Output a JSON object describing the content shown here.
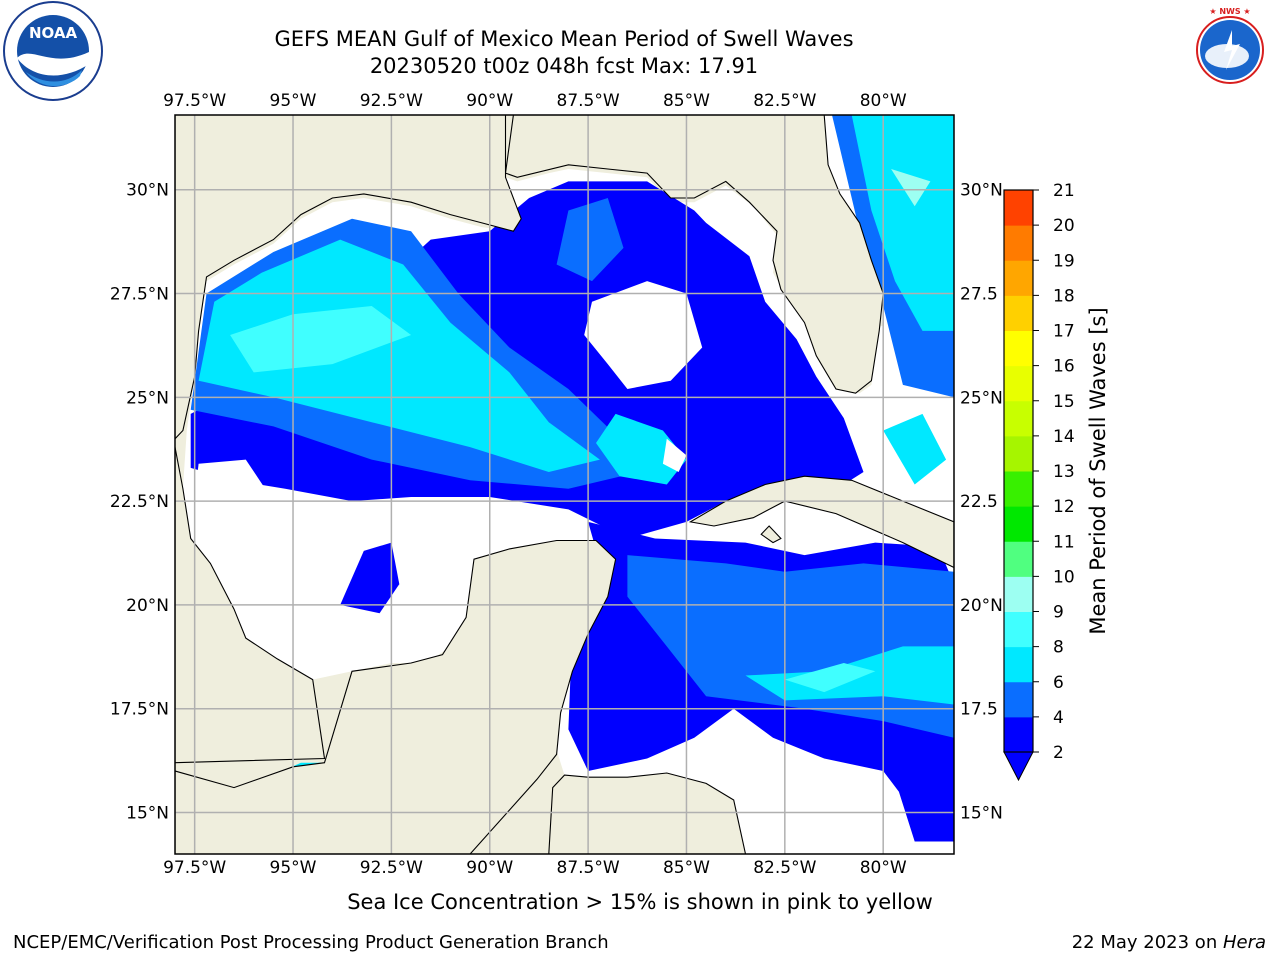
{
  "title": {
    "line1": "GEFS MEAN Gulf of Mexico Mean Period of Swell Waves",
    "line2": "20230520 t00z 048h fcst   Max: 17.91"
  },
  "logos": {
    "noaa_text": "NOAA",
    "noaa_ring_text": "NATIONAL OCEANIC AND ATMOSPHERIC ADMINISTRATION · U.S. DEPARTMENT OF COMMERCE",
    "nws_ring_text": "NATIONAL WEATHER SERVICE"
  },
  "map": {
    "lon_range": [
      -98.0,
      -78.2
    ],
    "lat_range": [
      14.0,
      31.8
    ],
    "lon_ticks": [
      "97.5°W",
      "95°W",
      "92.5°W",
      "90°W",
      "87.5°W",
      "85°W",
      "82.5°W",
      "80°W"
    ],
    "lon_values": [
      -97.5,
      -95,
      -92.5,
      -90,
      -87.5,
      -85,
      -82.5,
      -80
    ],
    "lat_ticks_left": [
      "15°N",
      "17.5°N",
      "20°N",
      "22.5°N",
      "25°N",
      "27.5°N",
      "30°N"
    ],
    "lat_ticks_right": [
      "15°N",
      "17.5",
      "20°N",
      "22.5",
      "25°N",
      "27.5",
      "30°N"
    ],
    "lat_values": [
      15,
      17.5,
      20,
      22.5,
      25,
      27.5,
      30
    ],
    "land_color": "#efeedd",
    "gridline_color": "#b0b0b0"
  },
  "colorbar": {
    "label": "Mean Period of Swell Waves [s]",
    "ticks": [
      "2",
      "4",
      "6",
      "8",
      "9",
      "10",
      "11",
      "12",
      "13",
      "14",
      "15",
      "16",
      "17",
      "18",
      "19",
      "20",
      "21"
    ],
    "colors": [
      "#0000ff",
      "#0a6eff",
      "#00e8ff",
      "#40ffff",
      "#9dfff2",
      "#50ff80",
      "#00e800",
      "#38f000",
      "#a6f500",
      "#c8ff00",
      "#e8ff00",
      "#ffff00",
      "#ffd000",
      "#ffa600",
      "#ff7b00",
      "#ff4200",
      "#ff0000"
    ]
  },
  "footer": {
    "note": "Sea Ice Concentration > 15% is shown in pink to yellow",
    "left": "NCEP/EMC/Verification Post Processing Product Generation Branch",
    "right_prefix": "22 May 2023 on ",
    "right_host": "Hera"
  }
}
